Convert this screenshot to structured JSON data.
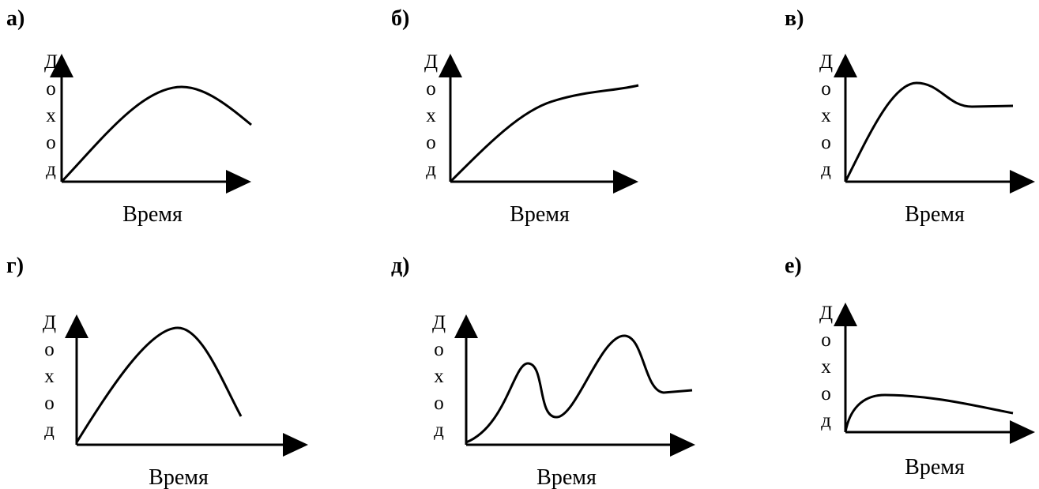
{
  "panels": [
    {
      "label": "а)",
      "y_label": "Доход",
      "x_label": "Время"
    },
    {
      "label": "б)",
      "y_label": "Доход",
      "x_label": "Время"
    },
    {
      "label": "в)",
      "y_label": "Доход",
      "x_label": "Время"
    },
    {
      "label": "г)",
      "y_label": "Доход",
      "x_label": "Время"
    },
    {
      "label": "д)",
      "y_label": "Доход",
      "x_label": "Время"
    },
    {
      "label": "е)",
      "y_label": "Доход",
      "x_label": "Время"
    }
  ]
}
